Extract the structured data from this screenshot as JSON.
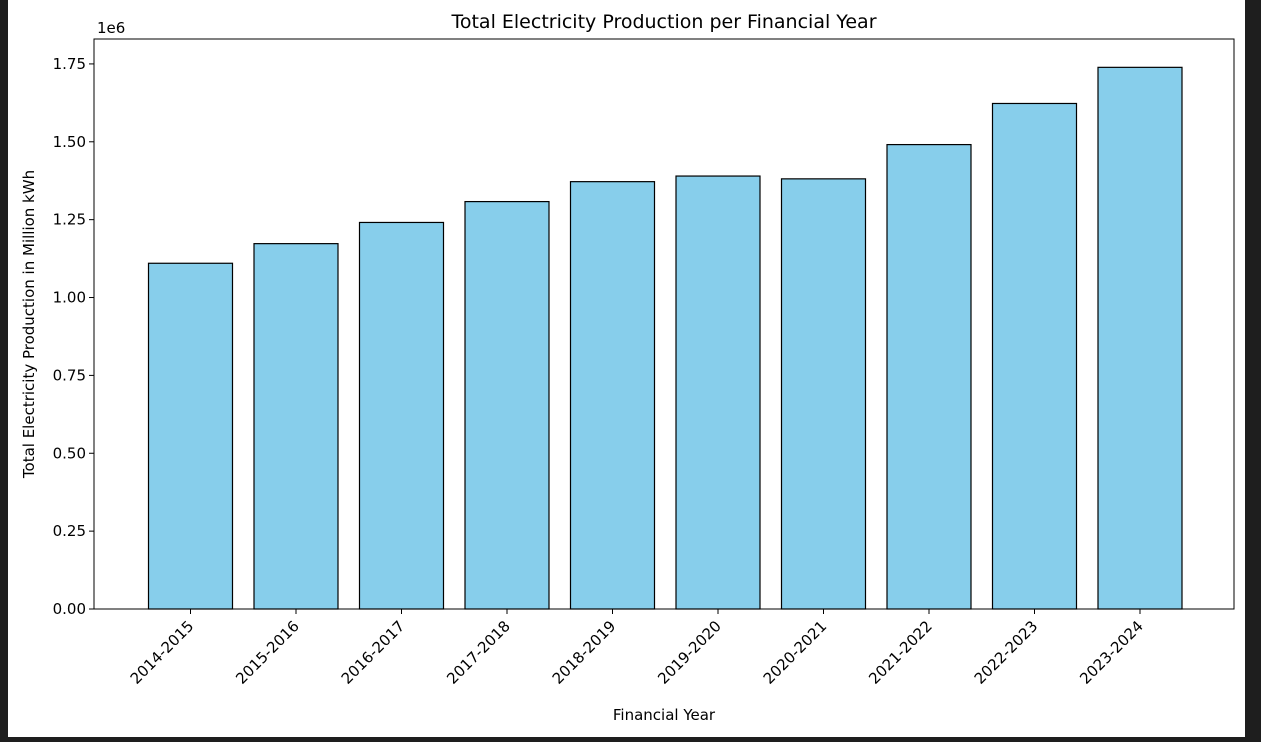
{
  "chart_data": {
    "type": "bar",
    "title": "Total Electricity Production per Financial Year",
    "xlabel": "Financial Year",
    "ylabel": "Total Electricity Production in Million kWh",
    "offset_label": "1e6",
    "categories": [
      "2014-2015",
      "2015-2016",
      "2016-2017",
      "2017-2018",
      "2018-2019",
      "2019-2020",
      "2020-2021",
      "2021-2022",
      "2022-2023",
      "2023-2024"
    ],
    "values": [
      1110000,
      1173000,
      1241000,
      1308000,
      1372000,
      1390000,
      1381000,
      1491000,
      1623000,
      1739000
    ],
    "ylim": [
      0,
      1830000
    ],
    "yticks": [
      0,
      250000,
      500000,
      750000,
      1000000,
      1250000,
      1500000,
      1750000
    ],
    "ytick_labels": [
      "0.00",
      "0.25",
      "0.50",
      "0.75",
      "1.00",
      "1.25",
      "1.50",
      "1.75"
    ],
    "grid": false,
    "bar_color": "#87ceeb",
    "edge_color": "#000000"
  }
}
